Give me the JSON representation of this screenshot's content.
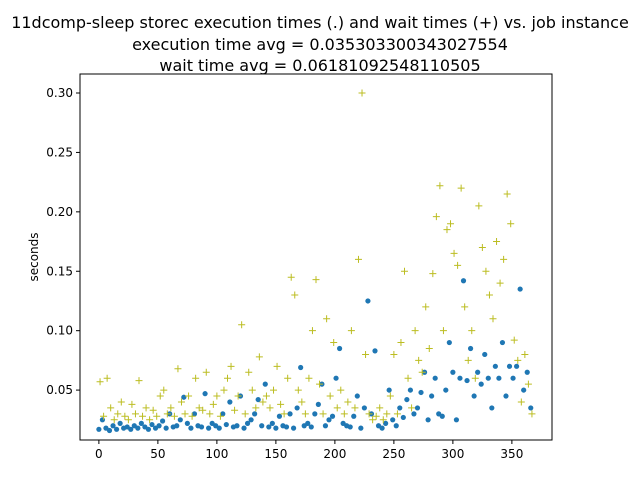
{
  "chart_data": {
    "type": "scatter",
    "title_lines": [
      "11dcomp-sleep storec execution times (.) and wait times (+) vs. job instance",
      "execution time avg = 0.035303300343027554",
      "wait time avg = 0.06181092548110505"
    ],
    "xlabel": "",
    "ylabel": "seconds",
    "xlim": [
      -16,
      384
    ],
    "ylim": [
      0.008,
      0.316
    ],
    "xticks": [
      "0",
      "50",
      "100",
      "150",
      "200",
      "250",
      "300",
      "350"
    ],
    "xtick_values": [
      0,
      50,
      100,
      150,
      200,
      250,
      300,
      350
    ],
    "yticks": [
      "0.05",
      "0.10",
      "0.15",
      "0.20",
      "0.25",
      "0.30"
    ],
    "ytick_values": [
      0.05,
      0.1,
      0.15,
      0.2,
      0.25,
      0.3
    ],
    "grid": false,
    "legend": "none",
    "colors": {
      "execution": "#1f77b4",
      "wait": "#bcbd22"
    },
    "series": [
      {
        "marker": "dot",
        "x": [
          0,
          3,
          6,
          9,
          12,
          15,
          18,
          21,
          24,
          27,
          30,
          33,
          36,
          39,
          42,
          45,
          48,
          51,
          54,
          57,
          60,
          63,
          66,
          69,
          72,
          75,
          78,
          81,
          84,
          87,
          90,
          93,
          96,
          99,
          102,
          105,
          108,
          111,
          114,
          117,
          120,
          123,
          126,
          129,
          132,
          135,
          138,
          141,
          144,
          147,
          150,
          153,
          156,
          159,
          162,
          165,
          168,
          171,
          174,
          177,
          180,
          183,
          186,
          189,
          192,
          195,
          198,
          201,
          204,
          207,
          210,
          213,
          216,
          219,
          222,
          225,
          228,
          231,
          234,
          237,
          240,
          243,
          246,
          249,
          252,
          255,
          258,
          261,
          264,
          267,
          270,
          273,
          276,
          279,
          282,
          285,
          288,
          291,
          294,
          297,
          300,
          303,
          306,
          309,
          312,
          315,
          318,
          321,
          324,
          327,
          330,
          333,
          336,
          339,
          342,
          345,
          348,
          351,
          354,
          357,
          360,
          363,
          366
        ],
        "values": [
          0.017,
          0.025,
          0.018,
          0.016,
          0.02,
          0.017,
          0.022,
          0.018,
          0.019,
          0.017,
          0.02,
          0.018,
          0.022,
          0.019,
          0.017,
          0.021,
          0.018,
          0.02,
          0.024,
          0.018,
          0.03,
          0.019,
          0.02,
          0.025,
          0.044,
          0.022,
          0.018,
          0.03,
          0.02,
          0.019,
          0.047,
          0.018,
          0.022,
          0.02,
          0.018,
          0.03,
          0.021,
          0.04,
          0.019,
          0.02,
          0.045,
          0.018,
          0.022,
          0.025,
          0.03,
          0.042,
          0.02,
          0.055,
          0.019,
          0.022,
          0.018,
          0.028,
          0.02,
          0.019,
          0.03,
          0.018,
          0.035,
          0.069,
          0.02,
          0.022,
          0.019,
          0.03,
          0.038,
          0.055,
          0.02,
          0.025,
          0.028,
          0.06,
          0.085,
          0.022,
          0.02,
          0.019,
          0.028,
          0.045,
          0.018,
          0.035,
          0.125,
          0.03,
          0.083,
          0.02,
          0.018,
          0.022,
          0.05,
          0.025,
          0.02,
          0.035,
          0.027,
          0.042,
          0.05,
          0.03,
          0.035,
          0.048,
          0.065,
          0.025,
          0.045,
          0.06,
          0.03,
          0.028,
          0.05,
          0.09,
          0.065,
          0.025,
          0.06,
          0.142,
          0.058,
          0.085,
          0.045,
          0.065,
          0.055,
          0.08,
          0.06,
          0.035,
          0.07,
          0.06,
          0.09,
          0.045,
          0.07,
          0.06,
          0.07,
          0.135,
          0.05,
          0.065,
          0.035
        ]
      },
      {
        "marker": "plus",
        "x": [
          1,
          4,
          7,
          10,
          13,
          16,
          19,
          22,
          25,
          28,
          31,
          34,
          37,
          40,
          43,
          46,
          49,
          52,
          55,
          58,
          61,
          64,
          67,
          70,
          73,
          76,
          79,
          82,
          85,
          88,
          91,
          94,
          97,
          100,
          103,
          106,
          109,
          112,
          115,
          118,
          121,
          124,
          127,
          130,
          133,
          136,
          139,
          142,
          145,
          148,
          151,
          154,
          157,
          160,
          163,
          166,
          169,
          172,
          175,
          178,
          181,
          184,
          187,
          190,
          193,
          196,
          199,
          202,
          205,
          208,
          211,
          214,
          217,
          220,
          223,
          226,
          229,
          232,
          235,
          238,
          241,
          244,
          247,
          250,
          253,
          256,
          259,
          262,
          265,
          268,
          271,
          274,
          277,
          280,
          283,
          286,
          289,
          292,
          295,
          298,
          301,
          304,
          307,
          310,
          313,
          316,
          319,
          322,
          325,
          328,
          331,
          334,
          337,
          340,
          343,
          346,
          349,
          352,
          355,
          358,
          361,
          364,
          367
        ],
        "values": [
          0.057,
          0.028,
          0.06,
          0.035,
          0.025,
          0.03,
          0.04,
          0.028,
          0.025,
          0.038,
          0.03,
          0.058,
          0.028,
          0.035,
          0.025,
          0.033,
          0.028,
          0.045,
          0.05,
          0.03,
          0.035,
          0.028,
          0.068,
          0.04,
          0.03,
          0.045,
          0.028,
          0.06,
          0.035,
          0.033,
          0.065,
          0.03,
          0.038,
          0.045,
          0.028,
          0.05,
          0.06,
          0.07,
          0.033,
          0.045,
          0.105,
          0.03,
          0.065,
          0.05,
          0.035,
          0.078,
          0.04,
          0.045,
          0.035,
          0.05,
          0.07,
          0.038,
          0.03,
          0.06,
          0.145,
          0.13,
          0.05,
          0.04,
          0.03,
          0.06,
          0.1,
          0.143,
          0.055,
          0.03,
          0.11,
          0.045,
          0.09,
          0.035,
          0.05,
          0.03,
          0.04,
          0.1,
          0.035,
          0.16,
          0.3,
          0.08,
          0.03,
          0.025,
          0.028,
          0.035,
          0.025,
          0.03,
          0.045,
          0.08,
          0.03,
          0.09,
          0.15,
          0.06,
          0.035,
          0.1,
          0.075,
          0.065,
          0.12,
          0.085,
          0.148,
          0.196,
          0.222,
          0.1,
          0.185,
          0.19,
          0.165,
          0.155,
          0.22,
          0.12,
          0.075,
          0.1,
          0.06,
          0.205,
          0.17,
          0.15,
          0.13,
          0.11,
          0.175,
          0.14,
          0.16,
          0.215,
          0.19,
          0.092,
          0.075,
          0.04,
          0.08,
          0.055,
          0.03
        ]
      }
    ]
  }
}
